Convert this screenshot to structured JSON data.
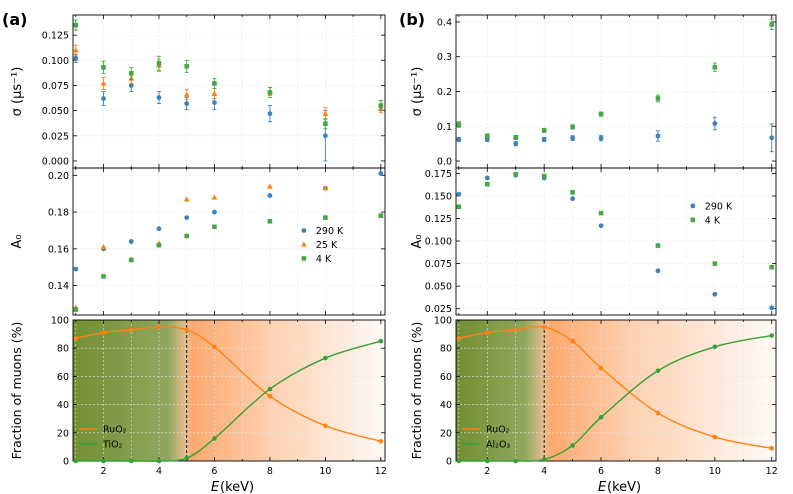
{
  "colors": {
    "s290": "#3c82bd",
    "s25": "#ff8210",
    "s4": "#44a844",
    "ruo2": "#ff8210",
    "second": "#35a035",
    "grid": "#e6e6e6",
    "shade_green": "#6a8a28",
    "shade_orange": "#fb9a55"
  },
  "panels": [
    {
      "label": "(a)",
      "xlabel_prefix": "E",
      "xlabel_suffix": " (keV)",
      "x_ticks": [
        "2",
        "4",
        "6",
        "8",
        "10",
        "12"
      ],
      "xlim": [
        0.9,
        12.15
      ],
      "boundary_keV": 5,
      "boundary_frac": 0.0,
      "sigma": {
        "ylabel": "σ (μs⁻¹)",
        "ylim": [
          -0.007,
          0.145
        ],
        "ticks": [
          0.0,
          0.025,
          0.05,
          0.075,
          0.1,
          0.125
        ],
        "tick_labels": [
          "0.000",
          "0.025",
          "0.050",
          "0.075",
          "0.100",
          "0.125"
        ],
        "series": [
          {
            "name": "290 K",
            "marker": "circle",
            "color_key": "s290",
            "x": [
              1,
              2,
              3,
              4,
              5,
              6,
              8,
              10,
              12
            ],
            "y": [
              0.102,
              0.062,
              0.075,
              0.063,
              0.057,
              0.058,
              0.047,
              0.025,
              0.055
            ],
            "err": [
              0.004,
              0.007,
              0.006,
              0.006,
              0.006,
              0.007,
              0.008,
              0.025,
              0.005
            ]
          },
          {
            "name": "25 K",
            "marker": "triangle",
            "color_key": "s25",
            "x": [
              1,
              2,
              3,
              4,
              5,
              6,
              8,
              10,
              12
            ],
            "y": [
              0.11,
              0.077,
              0.082,
              0.095,
              0.066,
              0.067,
              0.069,
              0.047,
              0.052
            ],
            "err": [
              0.005,
              0.006,
              0.005,
              0.006,
              0.005,
              0.005,
              0.004,
              0.006,
              0.004
            ]
          },
          {
            "name": "4 K",
            "marker": "square",
            "color_key": "s4",
            "x": [
              1,
              2,
              3,
              4,
              5,
              6,
              8,
              10,
              12
            ],
            "y": [
              0.135,
              0.093,
              0.087,
              0.097,
              0.094,
              0.077,
              0.068,
              0.037,
              0.055
            ],
            "err": [
              0.005,
              0.006,
              0.006,
              0.007,
              0.006,
              0.005,
              0.005,
              0.005,
              0.005
            ]
          }
        ]
      },
      "a0": {
        "ylabel": "A₀",
        "ylim": [
          0.124,
          0.204
        ],
        "ticks": [
          0.14,
          0.16,
          0.18,
          0.2
        ],
        "tick_labels": [
          "0.14",
          "0.16",
          "0.18",
          "0.20"
        ],
        "legend": [
          "290 K",
          "25 K",
          "4 K"
        ],
        "series": [
          {
            "name": "290 K",
            "marker": "circle",
            "color_key": "s290",
            "x": [
              1,
              2,
              3,
              4,
              5,
              6,
              8,
              10,
              12
            ],
            "y": [
              0.149,
              0.16,
              0.164,
              0.171,
              0.177,
              0.18,
              0.189,
              0.193,
              0.201
            ]
          },
          {
            "name": "25 K",
            "marker": "triangle",
            "color_key": "s25",
            "x": [
              1,
              2,
              3,
              4,
              5,
              6,
              8,
              10,
              12
            ],
            "y": [
              0.128,
              0.161,
              0.154,
              0.163,
              0.187,
              0.188,
              0.194,
              0.193,
              0.178
            ]
          },
          {
            "name": "4 K",
            "marker": "square",
            "color_key": "s4",
            "x": [
              1,
              2,
              3,
              4,
              5,
              6,
              8,
              10,
              12
            ],
            "y": [
              0.127,
              0.145,
              0.154,
              0.162,
              0.167,
              0.172,
              0.175,
              0.177,
              0.178
            ]
          }
        ]
      },
      "fraction": {
        "ylabel": "Fraction of muons (%)",
        "ylim": [
          0,
          100
        ],
        "ticks": [
          0,
          20,
          40,
          60,
          80,
          100
        ],
        "tick_labels": [
          "0",
          "20",
          "40",
          "60",
          "80",
          "100"
        ],
        "legend": [
          "RuO₂",
          "TiO₂"
        ],
        "series": [
          {
            "name": "RuO₂",
            "color_key": "ruo2",
            "x": [
              1,
              2,
              3,
              4,
              5,
              6,
              8,
              10,
              12
            ],
            "y": [
              87,
              91,
              93,
              95,
              93,
              81,
              46,
              25,
              14
            ]
          },
          {
            "name": "TiO₂",
            "color_key": "second",
            "x": [
              1,
              2,
              3,
              4,
              5,
              6,
              8,
              10,
              12
            ],
            "y": [
              0,
              0,
              0,
              0,
              2,
              16,
              51,
              73,
              85
            ]
          }
        ]
      }
    },
    {
      "label": "(b)",
      "xlabel_prefix": "E",
      "xlabel_suffix": " (keV)",
      "x_ticks": [
        "2",
        "4",
        "6",
        "8",
        "10",
        "12"
      ],
      "xlim": [
        0.9,
        12.15
      ],
      "boundary_keV": 4,
      "boundary_frac": 0.0,
      "sigma": {
        "ylabel": "σ (μs⁻¹)",
        "ylim": [
          -0.02,
          0.42
        ],
        "ticks": [
          0.0,
          0.1,
          0.2,
          0.3,
          0.4
        ],
        "tick_labels": [
          "0.0",
          "0.1",
          "0.2",
          "0.3",
          "0.4"
        ],
        "series": [
          {
            "name": "290 K",
            "marker": "circle",
            "color_key": "s290",
            "x": [
              1,
              2,
              3,
              4,
              5,
              6,
              8,
              10,
              12
            ],
            "y": [
              0.062,
              0.062,
              0.05,
              0.062,
              0.066,
              0.066,
              0.072,
              0.108,
              0.067
            ],
            "err": [
              0.006,
              0.006,
              0.006,
              0.006,
              0.007,
              0.008,
              0.015,
              0.018,
              0.04
            ]
          },
          {
            "name": "4 K",
            "marker": "square",
            "color_key": "s4",
            "x": [
              1,
              2,
              3,
              4,
              5,
              6,
              8,
              10,
              12
            ],
            "y": [
              0.105,
              0.072,
              0.068,
              0.088,
              0.098,
              0.135,
              0.18,
              0.27,
              0.393
            ],
            "err": [
              0.008,
              0.006,
              0.006,
              0.006,
              0.006,
              0.006,
              0.01,
              0.012,
              0.015
            ]
          }
        ]
      },
      "a0": {
        "ylabel": "A₀",
        "ylim": [
          0.018,
          0.181
        ],
        "ticks": [
          0.025,
          0.05,
          0.075,
          0.1,
          0.125,
          0.15,
          0.175
        ],
        "tick_labels": [
          "0.025",
          "0.050",
          "0.075",
          "0.100",
          "0.125",
          "0.150",
          "0.175"
        ],
        "legend": [
          "290 K",
          "4 K"
        ],
        "series": [
          {
            "name": "290 K",
            "marker": "circle",
            "color_key": "s290",
            "x": [
              1,
              2,
              3,
              4,
              5,
              6,
              8,
              10,
              12
            ],
            "y": [
              0.152,
              0.17,
              0.173,
              0.17,
              0.147,
              0.117,
              0.067,
              0.041,
              0.026
            ]
          },
          {
            "name": "4 K",
            "marker": "square",
            "color_key": "s4",
            "x": [
              1,
              2,
              3,
              4,
              5,
              6,
              8,
              10,
              12
            ],
            "y": [
              0.138,
              0.163,
              0.174,
              0.172,
              0.154,
              0.131,
              0.095,
              0.075,
              0.071
            ]
          }
        ]
      },
      "fraction": {
        "ylabel": "Fraction of muons (%)",
        "ylim": [
          0,
          100
        ],
        "ticks": [
          0,
          20,
          40,
          60,
          80,
          100
        ],
        "tick_labels": [
          "0",
          "20",
          "40",
          "60",
          "80",
          "100"
        ],
        "legend": [
          "RuO₂",
          "Al₂O₃"
        ],
        "series": [
          {
            "name": "RuO₂",
            "color_key": "ruo2",
            "x": [
              1,
              2,
              3,
              4,
              5,
              6,
              8,
              10,
              12
            ],
            "y": [
              87,
              91,
              93,
              95,
              85,
              66,
              34,
              17,
              9
            ]
          },
          {
            "name": "Al₂O₃",
            "color_key": "second",
            "x": [
              1,
              2,
              3,
              4,
              5,
              6,
              8,
              10,
              12
            ],
            "y": [
              0,
              0,
              0,
              1,
              11,
              31,
              64,
              81,
              89
            ]
          }
        ]
      }
    }
  ],
  "chart_data": [
    {
      "type": "scatter",
      "title": "(a) σ",
      "xlabel": "E (keV)",
      "ylabel": "σ (μs⁻¹)",
      "ylim": [
        -0.007,
        0.145
      ],
      "series": [
        {
          "name": "290 K",
          "x": [
            1,
            2,
            3,
            4,
            5,
            6,
            8,
            10,
            12
          ],
          "values": [
            0.102,
            0.062,
            0.075,
            0.063,
            0.057,
            0.058,
            0.047,
            0.025,
            0.055
          ]
        },
        {
          "name": "25 K",
          "x": [
            1,
            2,
            3,
            4,
            5,
            6,
            8,
            10,
            12
          ],
          "values": [
            0.11,
            0.077,
            0.082,
            0.095,
            0.066,
            0.067,
            0.069,
            0.047,
            0.052
          ]
        },
        {
          "name": "4 K",
          "x": [
            1,
            2,
            3,
            4,
            5,
            6,
            8,
            10,
            12
          ],
          "values": [
            0.135,
            0.093,
            0.087,
            0.097,
            0.094,
            0.077,
            0.068,
            0.037,
            0.055
          ]
        }
      ]
    },
    {
      "type": "scatter",
      "title": "(a) A₀",
      "xlabel": "E (keV)",
      "ylabel": "A₀",
      "ylim": [
        0.124,
        0.204
      ],
      "series": [
        {
          "name": "290 K",
          "x": [
            1,
            2,
            3,
            4,
            5,
            6,
            8,
            10,
            12
          ],
          "values": [
            0.149,
            0.16,
            0.164,
            0.171,
            0.177,
            0.18,
            0.189,
            0.193,
            0.201
          ]
        },
        {
          "name": "25 K",
          "x": [
            1,
            2,
            3,
            4,
            5,
            6,
            8,
            10,
            12
          ],
          "values": [
            0.128,
            0.161,
            0.154,
            0.163,
            0.187,
            0.188,
            0.194,
            0.193,
            0.178
          ]
        },
        {
          "name": "4 K",
          "x": [
            1,
            2,
            3,
            4,
            5,
            6,
            8,
            10,
            12
          ],
          "values": [
            0.127,
            0.145,
            0.154,
            0.162,
            0.167,
            0.172,
            0.175,
            0.177,
            0.178
          ]
        }
      ]
    },
    {
      "type": "line",
      "title": "(a) Fraction of muons",
      "xlabel": "E (keV)",
      "ylabel": "Fraction of muons (%)",
      "ylim": [
        0,
        100
      ],
      "series": [
        {
          "name": "RuO₂",
          "x": [
            1,
            2,
            3,
            4,
            5,
            6,
            8,
            10,
            12
          ],
          "values": [
            87,
            91,
            93,
            95,
            93,
            81,
            46,
            25,
            14
          ]
        },
        {
          "name": "TiO₂",
          "x": [
            1,
            2,
            3,
            4,
            5,
            6,
            8,
            10,
            12
          ],
          "values": [
            0,
            0,
            0,
            0,
            2,
            16,
            51,
            73,
            85
          ]
        }
      ]
    },
    {
      "type": "scatter",
      "title": "(b) σ",
      "xlabel": "E (keV)",
      "ylabel": "σ (μs⁻¹)",
      "ylim": [
        -0.02,
        0.42
      ],
      "series": [
        {
          "name": "290 K",
          "x": [
            1,
            2,
            3,
            4,
            5,
            6,
            8,
            10,
            12
          ],
          "values": [
            0.062,
            0.062,
            0.05,
            0.062,
            0.066,
            0.066,
            0.072,
            0.108,
            0.067
          ]
        },
        {
          "name": "4 K",
          "x": [
            1,
            2,
            3,
            4,
            5,
            6,
            8,
            10,
            12
          ],
          "values": [
            0.105,
            0.072,
            0.068,
            0.088,
            0.098,
            0.135,
            0.18,
            0.27,
            0.393
          ]
        }
      ]
    },
    {
      "type": "scatter",
      "title": "(b) A₀",
      "xlabel": "E (keV)",
      "ylabel": "A₀",
      "ylim": [
        0.018,
        0.181
      ],
      "series": [
        {
          "name": "290 K",
          "x": [
            1,
            2,
            3,
            4,
            5,
            6,
            8,
            10,
            12
          ],
          "values": [
            0.152,
            0.17,
            0.173,
            0.17,
            0.147,
            0.117,
            0.067,
            0.041,
            0.026
          ]
        },
        {
          "name": "4 K",
          "x": [
            1,
            2,
            3,
            4,
            5,
            6,
            8,
            10,
            12
          ],
          "values": [
            0.138,
            0.163,
            0.174,
            0.172,
            0.154,
            0.131,
            0.095,
            0.075,
            0.071
          ]
        }
      ]
    },
    {
      "type": "line",
      "title": "(b) Fraction of muons",
      "xlabel": "E (keV)",
      "ylabel": "Fraction of muons (%)",
      "ylim": [
        0,
        100
      ],
      "series": [
        {
          "name": "RuO₂",
          "x": [
            1,
            2,
            3,
            4,
            5,
            6,
            8,
            10,
            12
          ],
          "values": [
            87,
            91,
            93,
            95,
            85,
            66,
            34,
            17,
            9
          ]
        },
        {
          "name": "Al₂O₃",
          "x": [
            1,
            2,
            3,
            4,
            5,
            6,
            8,
            10,
            12
          ],
          "values": [
            0,
            0,
            0,
            1,
            11,
            31,
            64,
            81,
            89
          ]
        }
      ]
    }
  ]
}
